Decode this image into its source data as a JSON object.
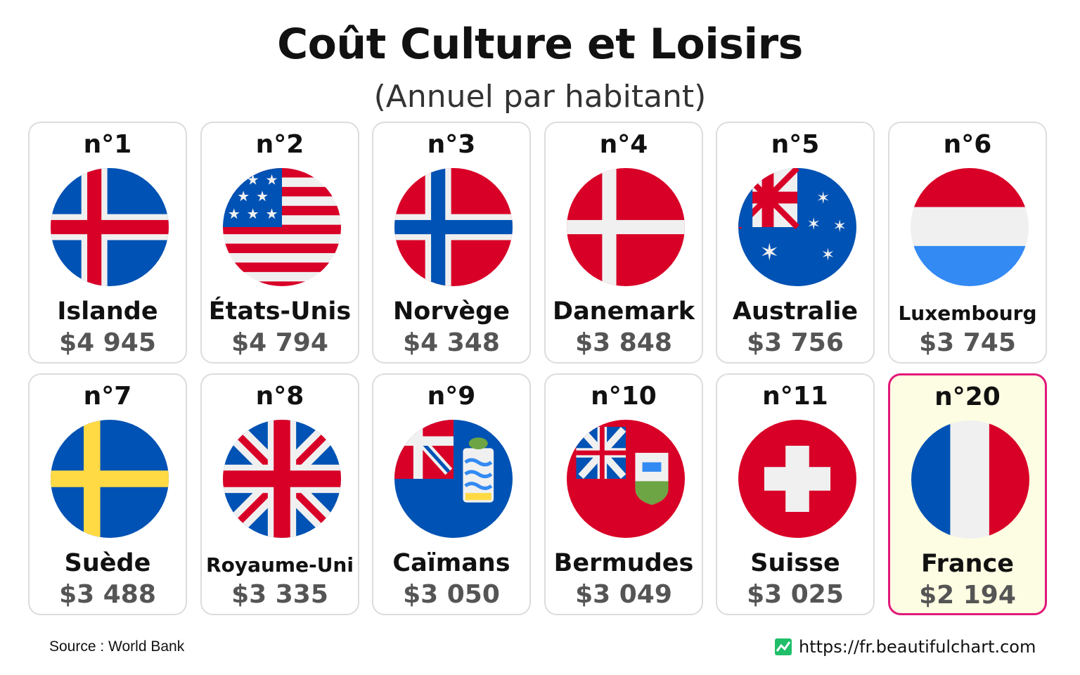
{
  "title": "Coût Culture et Loisirs",
  "subtitle": "(Annuel par habitant)",
  "source": "Source : World Bank",
  "url": "https://fr.beautifulchart.com",
  "colors": {
    "highlight_border": "#e2187a",
    "highlight_bg": "#fdfde3",
    "value_text": "#555555"
  },
  "chart_data": {
    "type": "table",
    "title": "Coût Culture et Loisirs",
    "subtitle": "(Annuel par habitant)",
    "rows": [
      {
        "rank": "n°1",
        "country": "Islande",
        "value_label": "$4 945",
        "value": 4945,
        "flag": "iceland-flag-icon"
      },
      {
        "rank": "n°2",
        "country": "États-Unis",
        "value_label": "$4 794",
        "value": 4794,
        "flag": "usa-flag-icon"
      },
      {
        "rank": "n°3",
        "country": "Norvège",
        "value_label": "$4 348",
        "value": 4348,
        "flag": "norway-flag-icon"
      },
      {
        "rank": "n°4",
        "country": "Danemark",
        "value_label": "$3 848",
        "value": 3848,
        "flag": "denmark-flag-icon"
      },
      {
        "rank": "n°5",
        "country": "Australie",
        "value_label": "$3 756",
        "value": 3756,
        "flag": "australia-flag-icon"
      },
      {
        "rank": "n°6",
        "country": "Luxembourg",
        "value_label": "$3 745",
        "value": 3745,
        "flag": "luxembourg-flag-icon"
      },
      {
        "rank": "n°7",
        "country": "Suède",
        "value_label": "$3 488",
        "value": 3488,
        "flag": "sweden-flag-icon"
      },
      {
        "rank": "n°8",
        "country": "Royaume-Uni",
        "value_label": "$3 335",
        "value": 3335,
        "flag": "uk-flag-icon"
      },
      {
        "rank": "n°9",
        "country": "Caïmans",
        "value_label": "$3 050",
        "value": 3050,
        "flag": "cayman-flag-icon"
      },
      {
        "rank": "n°10",
        "country": "Bermudes",
        "value_label": "$3 049",
        "value": 3049,
        "flag": "bermuda-flag-icon"
      },
      {
        "rank": "n°11",
        "country": "Suisse",
        "value_label": "$3 025",
        "value": 3025,
        "flag": "switzerland-flag-icon"
      },
      {
        "rank": "n°20",
        "country": "France",
        "value_label": "$2 194",
        "value": 2194,
        "flag": "france-flag-icon",
        "highlighted": true
      }
    ]
  }
}
